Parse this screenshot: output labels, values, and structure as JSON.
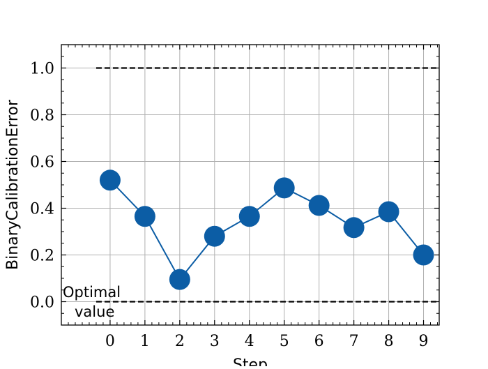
{
  "chart_data": {
    "type": "line",
    "xlabel": "Step",
    "ylabel": "BinaryCalibrationError",
    "x": [
      0,
      1,
      2,
      3,
      4,
      5,
      6,
      7,
      8,
      9
    ],
    "series": [
      {
        "values": [
          0.52,
          0.365,
          0.095,
          0.28,
          0.365,
          0.487,
          0.412,
          0.317,
          0.385,
          0.2
        ],
        "color": "#0C5DA5"
      }
    ],
    "xlim": [
      -1.4,
      9.45
    ],
    "ylim": [
      -0.1,
      1.1
    ],
    "xticks": [
      "0",
      "1",
      "2",
      "3",
      "4",
      "5",
      "6",
      "7",
      "8",
      "9"
    ],
    "yticks": [
      "0.0",
      "0.2",
      "0.4",
      "0.6",
      "0.8",
      "1.0"
    ],
    "reference_lines": [
      {
        "y": 1.0,
        "style": "dashed",
        "color": "#000000"
      },
      {
        "y": 0.0,
        "style": "dashed",
        "color": "#000000"
      }
    ],
    "annotation": {
      "line1": "Optimal",
      "line2": "value"
    },
    "grid": true,
    "legend": "none"
  }
}
